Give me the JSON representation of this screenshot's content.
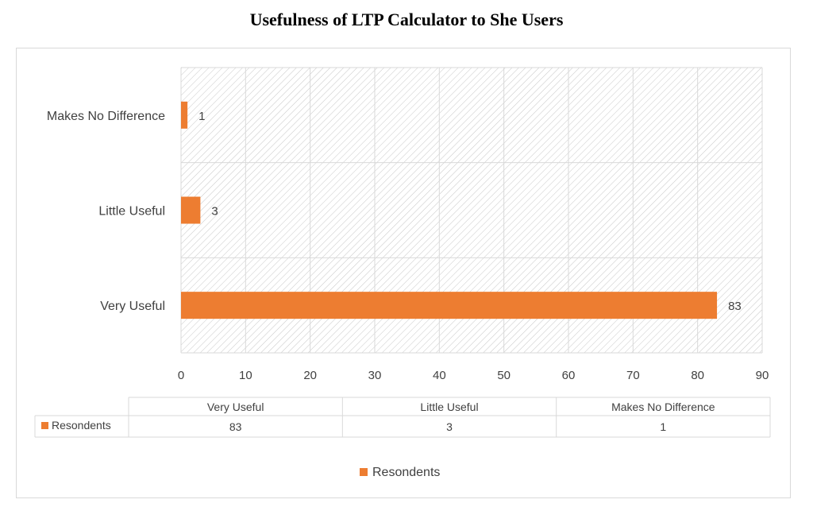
{
  "chart_data": {
    "type": "bar",
    "orientation": "horizontal",
    "title": "Usefulness of LTP Calculator to She Users",
    "categories": [
      "Very Useful",
      "Little Useful",
      "Makes No Difference"
    ],
    "series": [
      {
        "name": "Resondents",
        "values": [
          83,
          3,
          1
        ],
        "color": "#ED7D31"
      }
    ],
    "xlim": [
      0,
      90
    ],
    "xticks": [
      0,
      10,
      20,
      30,
      40,
      50,
      60,
      70,
      80,
      90
    ],
    "grid": true,
    "data_table": {
      "headers": [
        "Very Useful",
        "Little Useful",
        "Makes No Difference"
      ],
      "row_label": "Resondents",
      "values": [
        "83",
        "3",
        "1"
      ]
    },
    "legend": {
      "position": "bottom",
      "entries": [
        "Resondents"
      ]
    }
  }
}
